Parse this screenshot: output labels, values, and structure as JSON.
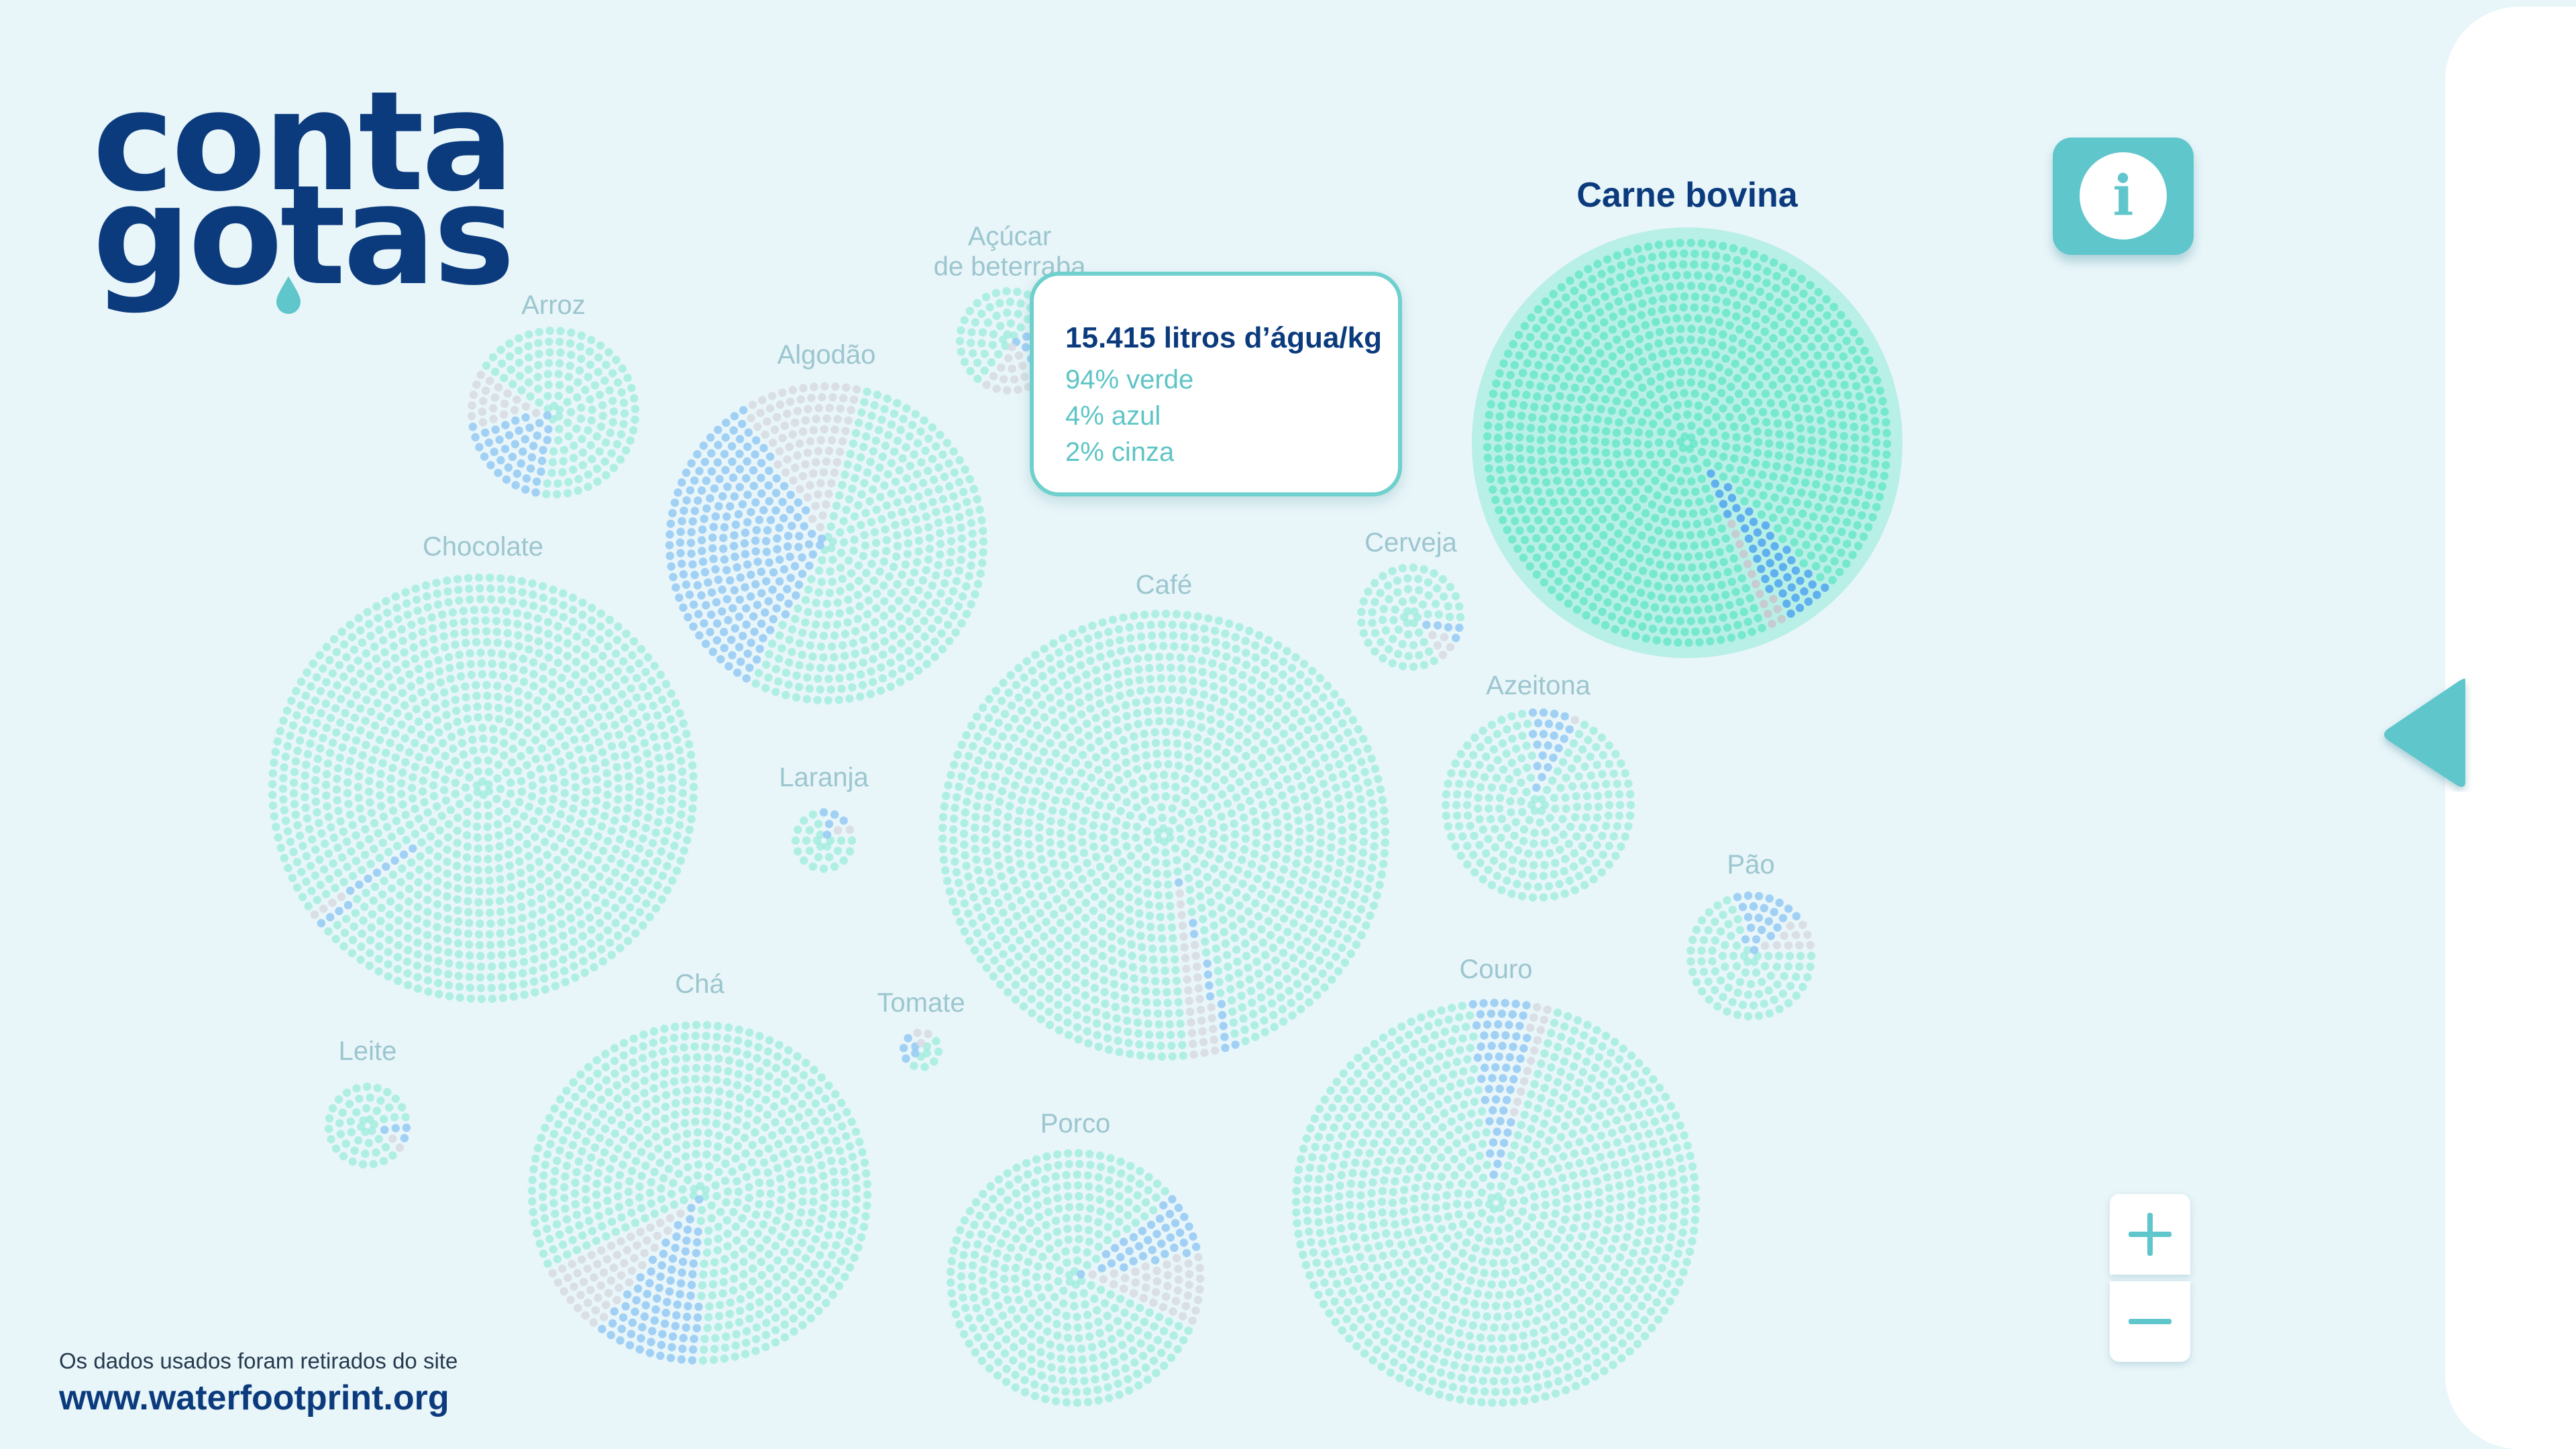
{
  "app": {
    "logo_line1": "conta",
    "logo_line2": "gotas"
  },
  "colors": {
    "background": "#e8f5f9",
    "green": "#5fe6c4",
    "blue": "#4fa5ee",
    "grey": "#c8c6cc",
    "brand_dark": "#0b3b7d",
    "accent": "#5fc6cc"
  },
  "bubbles": [
    {
      "id": "acucar",
      "label": "Açúcar\nde beterraba",
      "green": 0.6,
      "blue": 0.2,
      "grey": 0.2
    },
    {
      "id": "arroz",
      "label": "Arroz",
      "green": 0.68,
      "blue": 0.2,
      "grey": 0.12
    },
    {
      "id": "algodao",
      "label": "Algodão",
      "green": 0.54,
      "blue": 0.33,
      "grey": 0.13
    },
    {
      "id": "chocolate",
      "label": "Chocolate",
      "green": 0.98,
      "blue": 0.01,
      "grey": 0.01
    },
    {
      "id": "cafe",
      "label": "Café",
      "green": 0.96,
      "blue": 0.01,
      "grey": 0.03
    },
    {
      "id": "cerveja",
      "label": "Cerveja",
      "green": 0.85,
      "blue": 0.06,
      "grey": 0.09
    },
    {
      "id": "carne",
      "label": "Carne bovina",
      "green": 0.94,
      "blue": 0.04,
      "grey": 0.02
    },
    {
      "id": "laranja",
      "label": "Laranja",
      "green": 0.72,
      "blue": 0.16,
      "grey": 0.12
    },
    {
      "id": "azeitona",
      "label": "Azeitona",
      "green": 0.9,
      "blue": 0.08,
      "grey": 0.02
    },
    {
      "id": "pao",
      "label": "Pão",
      "green": 0.7,
      "blue": 0.19,
      "grey": 0.11
    },
    {
      "id": "leite",
      "label": "Leite",
      "green": 0.85,
      "blue": 0.08,
      "grey": 0.07
    },
    {
      "id": "cha",
      "label": "Chá",
      "green": 0.82,
      "blue": 0.1,
      "grey": 0.08
    },
    {
      "id": "tomate",
      "label": "Tomate",
      "green": 0.5,
      "blue": 0.3,
      "grey": 0.2
    },
    {
      "id": "couro",
      "label": "Couro",
      "green": 0.93,
      "blue": 0.05,
      "grey": 0.02
    },
    {
      "id": "porco",
      "label": "Porco",
      "green": 0.82,
      "blue": 0.08,
      "grey": 0.1
    }
  ],
  "tooltip": {
    "title": "15.415 litros d’água/kg",
    "line_green": "94% verde",
    "line_blue": "4% azul",
    "line_grey": "2% cinza"
  },
  "info_button": {
    "glyph": "i",
    "icon": "info-icon"
  },
  "source": {
    "text": "Os dados usados foram retirados do site",
    "url": "www.waterfootprint.org"
  }
}
